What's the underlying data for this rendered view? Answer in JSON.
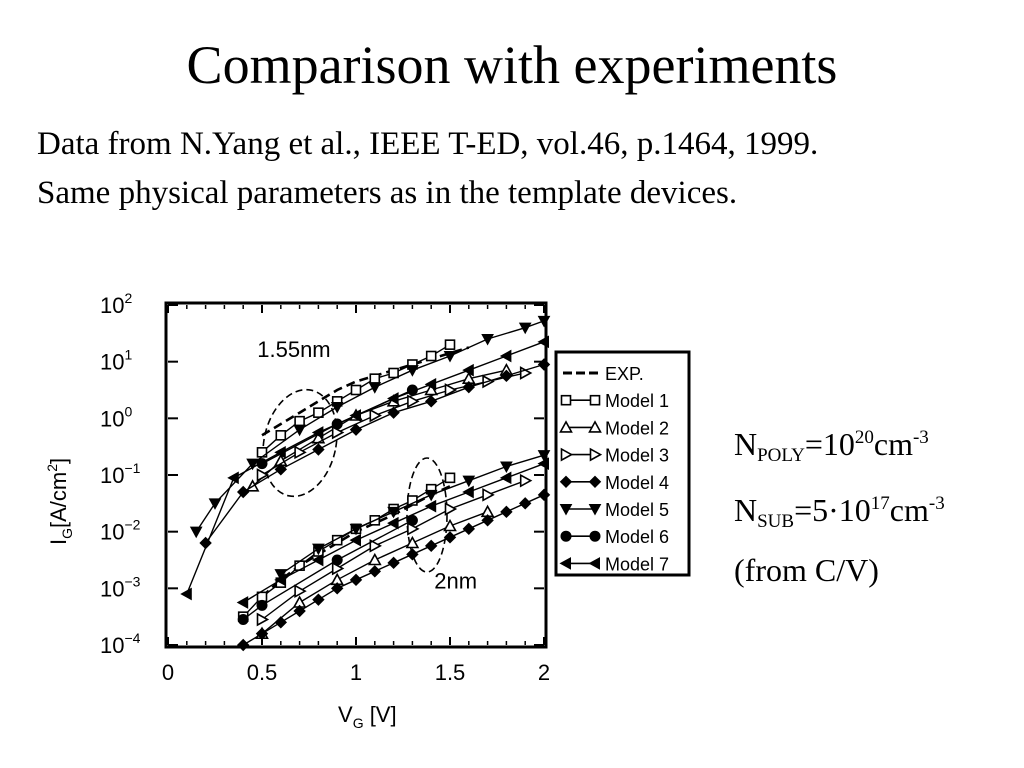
{
  "slide": {
    "title": "Comparison with experiments",
    "subtitle_line1": "Data from N.Yang et al., IEEE T-ED, vol.46, p.1464, 1999.",
    "subtitle_line2": "Same physical parameters as in the template devices."
  },
  "params": {
    "npoly_base": "N",
    "npoly_sub": "POLY",
    "npoly_eq": "=10",
    "npoly_exp": "20",
    "npoly_unit": "cm",
    "npoly_unit_exp": "-3",
    "nsub_base": "N",
    "nsub_sub": "SUB",
    "nsub_eq": "=5·10",
    "nsub_exp": "17",
    "nsub_unit": "cm",
    "nsub_unit_exp": "-3",
    "note": "(from C/V)"
  },
  "chart_data": {
    "type": "scatter",
    "xlabel": "V",
    "xlabel_sub": "G",
    "xlabel_unit": " [V]",
    "ylabel": "I",
    "ylabel_sub": "G",
    "ylabel_unit": "[A/cm",
    "ylabel_unit_sup": "2",
    "ylabel_unit_end": "]",
    "xlim": [
      0,
      2
    ],
    "ylim": [
      -4,
      2
    ],
    "y_log_scale": true,
    "x_ticks": [
      0,
      0.5,
      1,
      1.5,
      2
    ],
    "x_tick_labels": [
      "0",
      "0.5",
      "1",
      "1.5",
      "2"
    ],
    "y_ticks": [
      -4,
      -3,
      -2,
      -1,
      0,
      1,
      2
    ],
    "y_tick_base": "10",
    "y_tick_exps": [
      "−4",
      "−3",
      "−2",
      "−1",
      "0",
      "1",
      "2"
    ],
    "annotations": [
      {
        "text": "1.55nm",
        "x": 0.67,
        "y_log": 1.08
      },
      {
        "text": "2nm",
        "x": 1.53,
        "y_log": -3.0
      }
    ],
    "legend_position": "right, outside plot",
    "legend": [
      "EXP.",
      "Model 1",
      "Model 2",
      "Model 3",
      "Model 4",
      "Model 5",
      "Model 6",
      "Model 7"
    ],
    "series": [
      {
        "name": "EXP.",
        "marker": "dash",
        "group": "1.55nm",
        "x": [
          0.5,
          0.6,
          0.7,
          0.8,
          0.9,
          1.0,
          1.2,
          1.4,
          1.6
        ],
        "y_log": [
          -0.3,
          -0.1,
          0.1,
          0.3,
          0.5,
          0.65,
          0.85,
          1.05,
          1.25
        ]
      },
      {
        "name": "Model 1",
        "marker": "square-open",
        "group": "1.55nm",
        "x": [
          0.5,
          0.6,
          0.7,
          0.8,
          0.9,
          1.0,
          1.1,
          1.2,
          1.3,
          1.4,
          1.5
        ],
        "y_log": [
          -0.6,
          -0.3,
          -0.05,
          0.1,
          0.3,
          0.5,
          0.7,
          0.8,
          0.95,
          1.1,
          1.3
        ]
      },
      {
        "name": "Model 2",
        "marker": "triangle-up-open",
        "group": "1.55nm",
        "x": [
          0.45,
          0.6,
          0.8,
          1.0,
          1.2,
          1.4,
          1.6,
          1.8
        ],
        "y_log": [
          -1.2,
          -0.75,
          -0.35,
          0.05,
          0.3,
          0.5,
          0.7,
          0.85
        ]
      },
      {
        "name": "Model 3",
        "marker": "triangle-right-open",
        "group": "1.55nm",
        "x": [
          0.5,
          0.7,
          0.9,
          1.1,
          1.3,
          1.5,
          1.7,
          1.9
        ],
        "y_log": [
          -1.0,
          -0.6,
          -0.25,
          0.05,
          0.3,
          0.5,
          0.65,
          0.8
        ]
      },
      {
        "name": "Model 4",
        "marker": "diamond-filled",
        "group": "1.55nm",
        "x": [
          0.2,
          0.4,
          0.6,
          0.8,
          1.0,
          1.2,
          1.4,
          1.6,
          1.8,
          2.0
        ],
        "y_log": [
          -2.2,
          -1.3,
          -0.9,
          -0.55,
          -0.2,
          0.1,
          0.3,
          0.55,
          0.75,
          0.95
        ]
      },
      {
        "name": "Model 5",
        "marker": "triangle-down-filled",
        "group": "1.55nm",
        "x": [
          0.15,
          0.25,
          0.45,
          0.7,
          0.9,
          1.1,
          1.3,
          1.5,
          1.7,
          1.9,
          2.0
        ],
        "y_log": [
          -2.0,
          -1.5,
          -0.8,
          -0.2,
          0.2,
          0.55,
          0.85,
          1.1,
          1.4,
          1.6,
          1.72
        ]
      },
      {
        "name": "Model 6",
        "marker": "circle-filled",
        "group": "1.55nm",
        "x": [
          0.5,
          0.9,
          1.3
        ],
        "y_log": [
          -0.8,
          -0.1,
          0.5
        ]
      },
      {
        "name": "Model 7",
        "marker": "triangle-left-filled",
        "group": "1.55nm",
        "x": [
          0.1,
          0.35,
          0.6,
          0.8,
          1.0,
          1.2,
          1.4,
          1.6,
          1.8,
          2.0
        ],
        "y_log": [
          -3.1,
          -1.05,
          -0.6,
          -0.25,
          0.05,
          0.35,
          0.6,
          0.85,
          1.1,
          1.35
        ]
      },
      {
        "name": "EXP.",
        "marker": "dash",
        "group": "2nm",
        "x": [
          0.5,
          0.6,
          0.7,
          0.8,
          0.9,
          1.0,
          1.2,
          1.4,
          1.5
        ],
        "y_log": [
          -3.15,
          -2.85,
          -2.6,
          -2.4,
          -2.2,
          -2.0,
          -1.7,
          -1.35,
          -1.2
        ]
      },
      {
        "name": "Model 1",
        "marker": "square-open",
        "group": "2nm",
        "x": [
          0.4,
          0.5,
          0.6,
          0.7,
          0.8,
          0.9,
          1.0,
          1.1,
          1.2,
          1.3,
          1.4,
          1.5
        ],
        "y_log": [
          -3.5,
          -3.15,
          -2.9,
          -2.6,
          -2.35,
          -2.15,
          -1.95,
          -1.8,
          -1.6,
          -1.45,
          -1.25,
          -1.05
        ]
      },
      {
        "name": "Model 2",
        "marker": "triangle-up-open",
        "group": "2nm",
        "x": [
          0.5,
          0.7,
          0.9,
          1.1,
          1.3,
          1.5,
          1.7
        ],
        "y_log": [
          -3.8,
          -3.25,
          -2.85,
          -2.5,
          -2.2,
          -1.9,
          -1.65
        ]
      },
      {
        "name": "Model 3",
        "marker": "triangle-right-open",
        "group": "2nm",
        "x": [
          0.5,
          0.7,
          0.9,
          1.1,
          1.3,
          1.5,
          1.7,
          1.9
        ],
        "y_log": [
          -3.55,
          -3.05,
          -2.65,
          -2.25,
          -1.95,
          -1.6,
          -1.35,
          -1.1
        ]
      },
      {
        "name": "Model 4",
        "marker": "diamond-filled",
        "group": "2nm",
        "x": [
          0.4,
          0.5,
          0.6,
          0.7,
          0.8,
          0.9,
          1.0,
          1.1,
          1.2,
          1.3,
          1.4,
          1.5,
          1.6,
          1.7,
          1.8,
          1.9,
          2.0
        ],
        "y_log": [
          -4.0,
          -3.8,
          -3.6,
          -3.4,
          -3.2,
          -3.0,
          -2.85,
          -2.7,
          -2.55,
          -2.4,
          -2.25,
          -2.1,
          -1.95,
          -1.8,
          -1.65,
          -1.5,
          -1.35
        ]
      },
      {
        "name": "Model 5",
        "marker": "triangle-down-filled",
        "group": "2nm",
        "x": [
          0.6,
          0.8,
          1.0,
          1.2,
          1.4,
          1.6,
          1.8,
          2.0
        ],
        "y_log": [
          -2.75,
          -2.3,
          -1.95,
          -1.65,
          -1.35,
          -1.1,
          -0.85,
          -0.65
        ]
      },
      {
        "name": "Model 6",
        "marker": "circle-filled",
        "group": "2nm",
        "x": [
          0.4,
          0.5,
          0.9,
          1.3
        ],
        "y_log": [
          -3.55,
          -3.3,
          -2.5,
          -1.8
        ]
      },
      {
        "name": "Model 7",
        "marker": "triangle-left-filled",
        "group": "2nm",
        "x": [
          0.4,
          0.6,
          0.8,
          1.0,
          1.2,
          1.4,
          1.6,
          1.8,
          2.0
        ],
        "y_log": [
          -3.25,
          -2.85,
          -2.5,
          -2.15,
          -1.85,
          -1.55,
          -1.3,
          -1.05,
          -0.8
        ]
      }
    ]
  }
}
